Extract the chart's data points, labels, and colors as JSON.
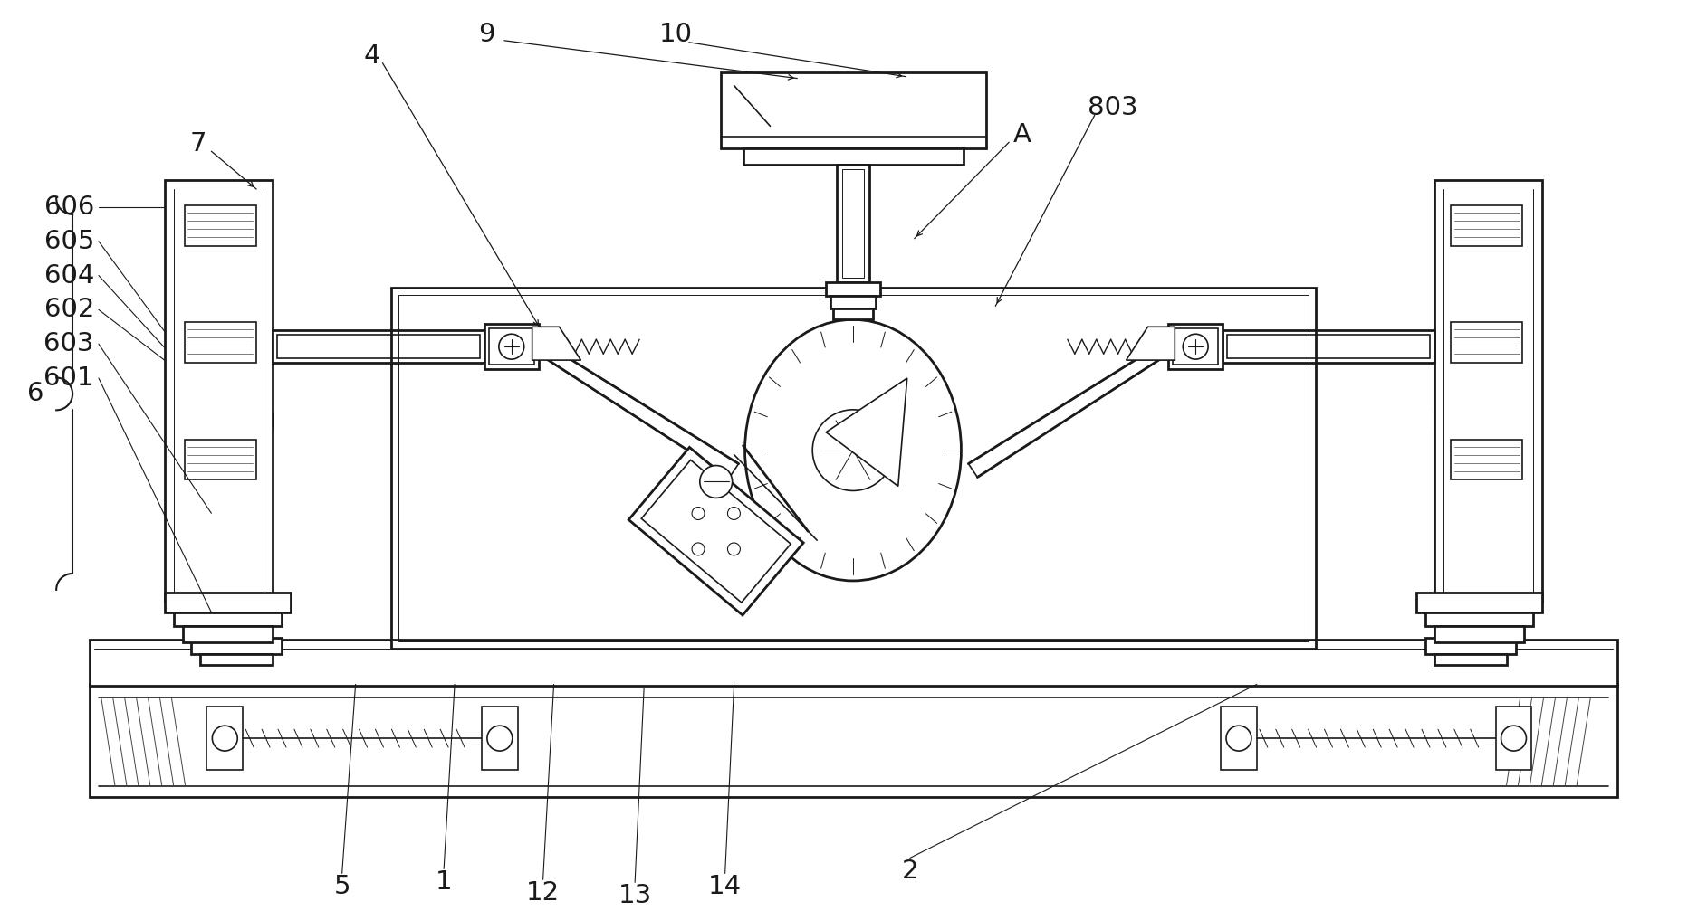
{
  "background": "#ffffff",
  "line_color": "#1a1a1a",
  "label_color": "#1a1a1a",
  "figsize": [
    18.85,
    10.07
  ],
  "dpi": 100
}
